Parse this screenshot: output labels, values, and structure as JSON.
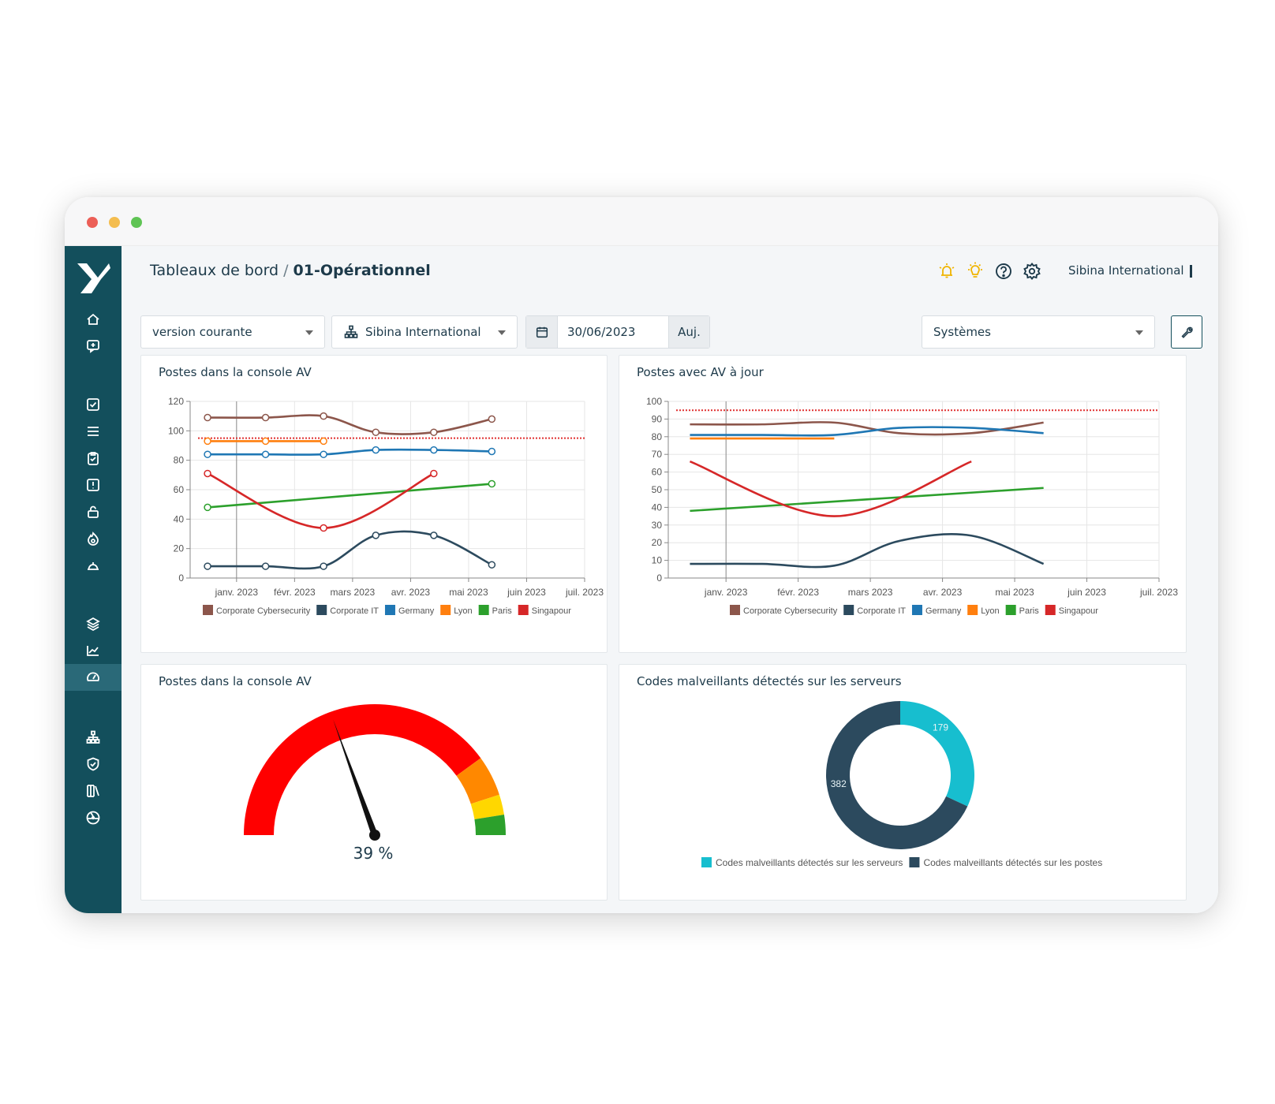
{
  "window": {
    "traffic_lights": [
      "#ec5f57",
      "#f4bd4f",
      "#5fc454"
    ]
  },
  "header": {
    "breadcrumb_root": "Tableaux de bord",
    "breadcrumb_sep": "/",
    "breadcrumb_current": "01-Opérationnel",
    "organization": "Sibina International",
    "icons": [
      "alert-bell-icon",
      "lightbulb-icon",
      "help-icon",
      "gear-icon"
    ]
  },
  "sidebar": {
    "items": [
      "home-icon",
      "messages-icon",
      "checkbox-icon",
      "list-icon",
      "clipboard-check-icon",
      "alert-square-icon",
      "lock-icon",
      "fire-icon",
      "helmet-icon",
      "layers-icon",
      "trend-chart-icon",
      "gauge-icon",
      "org-chart-icon",
      "shield-check-icon",
      "library-icon",
      "radiation-icon"
    ],
    "active": "gauge-icon"
  },
  "filters": {
    "version": "version courante",
    "entity": "Sibina International",
    "date": "30/06/2023",
    "today_label": "Auj.",
    "scope": "Systèmes"
  },
  "legend_series": [
    "Corporate Cybersecurity",
    "Corporate IT",
    "Germany",
    "Lyon",
    "Paris",
    "Singapour"
  ],
  "colors": {
    "Corporate Cybersecurity": "#8c564b",
    "Corporate IT": "#2c4a5e",
    "Germany": "#1f77b4",
    "Lyon": "#ff7f0e",
    "Paris": "#2ca02c",
    "Singapour": "#d62728",
    "threshold": "#e03030"
  },
  "chart_data": [
    {
      "type": "line",
      "title": "Postes dans la console AV",
      "x": [
        "janv. 2023",
        "févr. 2023",
        "mars 2023",
        "avr. 2023",
        "mai 2023",
        "juin 2023",
        "juil. 2023"
      ],
      "ylim": [
        0,
        120
      ],
      "yticks": [
        0,
        20,
        40,
        60,
        80,
        100,
        120
      ],
      "threshold": 95,
      "series": [
        {
          "name": "Corporate Cybersecurity",
          "points": [
            [
              -0.5,
              109
            ],
            [
              0.5,
              109
            ],
            [
              1.5,
              110
            ],
            [
              2.4,
              99
            ],
            [
              3.4,
              99
            ],
            [
              4.4,
              108
            ]
          ]
        },
        {
          "name": "Corporate IT",
          "points": [
            [
              -0.5,
              8
            ],
            [
              0.5,
              8
            ],
            [
              1.5,
              8
            ],
            [
              2.4,
              29
            ],
            [
              3.4,
              29
            ],
            [
              4.4,
              9
            ]
          ]
        },
        {
          "name": "Germany",
          "points": [
            [
              -0.5,
              84
            ],
            [
              0.5,
              84
            ],
            [
              1.5,
              84
            ],
            [
              2.4,
              87
            ],
            [
              3.4,
              87
            ],
            [
              4.4,
              86
            ]
          ]
        },
        {
          "name": "Lyon",
          "points": [
            [
              -0.5,
              93
            ],
            [
              0.5,
              93
            ],
            [
              1.5,
              93
            ]
          ]
        },
        {
          "name": "Paris",
          "points": [
            [
              -0.5,
              48
            ],
            [
              4.4,
              64
            ]
          ]
        },
        {
          "name": "Singapour",
          "points": [
            [
              -0.5,
              71
            ],
            [
              1.5,
              34
            ],
            [
              3.4,
              71
            ]
          ]
        }
      ]
    },
    {
      "type": "line",
      "title": "Postes avec AV à jour",
      "x": [
        "janv. 2023",
        "févr. 2023",
        "mars 2023",
        "avr. 2023",
        "mai 2023",
        "juin 2023",
        "juil. 2023"
      ],
      "ylim": [
        0,
        100
      ],
      "yticks": [
        0,
        10,
        20,
        30,
        40,
        50,
        60,
        70,
        80,
        90,
        100
      ],
      "threshold": 95,
      "series": [
        {
          "name": "Corporate Cybersecurity",
          "points": [
            [
              -0.5,
              87
            ],
            [
              0.5,
              87
            ],
            [
              1.5,
              88
            ],
            [
              2.4,
              82
            ],
            [
              3.4,
              82
            ],
            [
              4.4,
              88
            ]
          ]
        },
        {
          "name": "Corporate IT",
          "points": [
            [
              -0.5,
              8
            ],
            [
              0.5,
              8
            ],
            [
              1.5,
              7
            ],
            [
              2.4,
              21
            ],
            [
              3.4,
              24
            ],
            [
              4.4,
              8
            ]
          ]
        },
        {
          "name": "Germany",
          "points": [
            [
              -0.5,
              81
            ],
            [
              0.5,
              81
            ],
            [
              1.5,
              81
            ],
            [
              2.4,
              85
            ],
            [
              3.4,
              85
            ],
            [
              4.4,
              82
            ]
          ]
        },
        {
          "name": "Lyon",
          "points": [
            [
              -0.5,
              79
            ],
            [
              1.5,
              79
            ]
          ]
        },
        {
          "name": "Paris",
          "points": [
            [
              -0.5,
              38
            ],
            [
              4.4,
              51
            ]
          ]
        },
        {
          "name": "Singapour",
          "points": [
            [
              -0.5,
              66
            ],
            [
              1.5,
              35
            ],
            [
              3.4,
              66
            ]
          ]
        }
      ]
    },
    {
      "type": "gauge",
      "title": "Postes dans la console AV",
      "value": 39,
      "label": "39 %",
      "bands": [
        {
          "from": 0,
          "to": 80,
          "color": "#ff0000"
        },
        {
          "from": 80,
          "to": 90,
          "color": "#ff8800"
        },
        {
          "from": 90,
          "to": 95,
          "color": "#ffd700"
        },
        {
          "from": 95,
          "to": 100,
          "color": "#2ca02c"
        }
      ]
    },
    {
      "type": "pie",
      "title": "Codes malveillants détectés sur les serveurs",
      "slices": [
        {
          "name": "Codes malveillants détectés sur les serveurs",
          "value": 179,
          "color": "#17becf"
        },
        {
          "name": "Codes malveillants détectés sur les postes",
          "value": 382,
          "color": "#2c4a5e"
        }
      ]
    }
  ]
}
